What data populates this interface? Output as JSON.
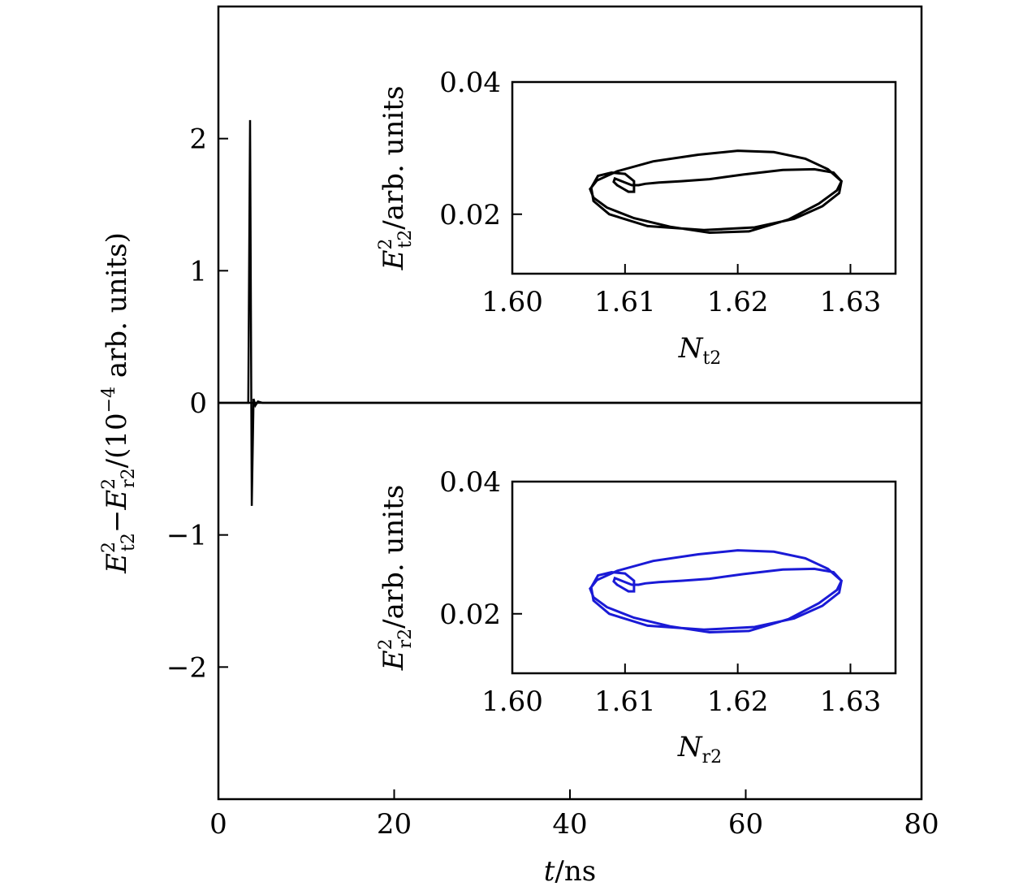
{
  "chart_data": [
    {
      "type": "line",
      "xlabel": {
        "var": "t",
        "unit": "/ns"
      },
      "ylabel": {
        "sym1": "E",
        "sub1": "t2",
        "sup1": "2",
        "minus": "−",
        "sym2": "E",
        "sub2": "r2",
        "sup2": "2",
        "tail1": "/(10",
        "exp": "−4",
        "tail2": " arb. units)"
      },
      "xlim": [
        0,
        80
      ],
      "ylim": [
        -3,
        3
      ],
      "xticks": [
        0,
        20,
        40,
        60,
        80
      ],
      "xtick_labels": [
        "0",
        "20",
        "40",
        "60",
        "80"
      ],
      "yticks": [
        -2,
        -1,
        0,
        1,
        2
      ],
      "ytick_labels": [
        "−2",
        "−1",
        "0",
        "1",
        "2"
      ],
      "grid": false,
      "series": [
        {
          "color": "#000000",
          "x": [
            0,
            3.4,
            3.6,
            3.8,
            4.0,
            4.2,
            4.5,
            5.0,
            6.0,
            10,
            20,
            40,
            60,
            80
          ],
          "y": [
            0,
            0,
            2.14,
            -0.78,
            0.03,
            -0.02,
            0.01,
            0.0,
            0.0,
            0,
            0,
            0,
            0,
            0
          ]
        }
      ]
    },
    {
      "type": "line",
      "position": "upper inset",
      "xlabel": {
        "sym": "N",
        "sub": "t2"
      },
      "ylabel": {
        "sym": "E",
        "sub": "t2",
        "sup": "2",
        "tail": "/arb. units"
      },
      "xlim": [
        1.6,
        1.634
      ],
      "ylim": [
        0.011,
        0.04
      ],
      "xticks": [
        1.6,
        1.61,
        1.62,
        1.63
      ],
      "xtick_labels": [
        "1.60",
        "1.61",
        "1.62",
        "1.63"
      ],
      "yticks": [
        0.02,
        0.04
      ],
      "ytick_labels": [
        "0.02",
        "0.04"
      ],
      "grid": false,
      "series": [
        {
          "color": "#000000",
          "x": [
            1.6108,
            1.6103,
            1.6098,
            1.6093,
            1.609,
            1.6091,
            1.6097,
            1.6106,
            1.6112,
            1.6118,
            1.613,
            1.615,
            1.6175,
            1.6205,
            1.624,
            1.6268,
            1.6285,
            1.6292,
            1.6288,
            1.6272,
            1.6245,
            1.621,
            1.6175,
            1.614,
            1.6108,
            1.6084,
            1.6072,
            1.6069,
            1.6075,
            1.6093,
            1.6125,
            1.6165,
            1.62,
            1.6232,
            1.626,
            1.628,
            1.6292,
            1.629,
            1.6275,
            1.625,
            1.6215,
            1.617,
            1.612,
            1.6086,
            1.6072,
            1.607,
            1.6076,
            1.6088,
            1.61,
            1.6108
          ],
          "y": [
            0.0234,
            0.0234,
            0.0239,
            0.0244,
            0.0249,
            0.0254,
            0.025,
            0.0244,
            0.0244,
            0.0246,
            0.0248,
            0.025,
            0.0253,
            0.026,
            0.0267,
            0.0268,
            0.0263,
            0.025,
            0.0236,
            0.0216,
            0.0192,
            0.0174,
            0.0172,
            0.0181,
            0.0194,
            0.021,
            0.0225,
            0.0238,
            0.0251,
            0.0265,
            0.028,
            0.029,
            0.0296,
            0.0294,
            0.0284,
            0.0268,
            0.025,
            0.0232,
            0.0212,
            0.0193,
            0.018,
            0.0176,
            0.0182,
            0.02,
            0.022,
            0.024,
            0.0258,
            0.0263,
            0.0261,
            0.025
          ]
        }
      ]
    },
    {
      "type": "line",
      "position": "lower inset",
      "xlabel": {
        "sym": "N",
        "sub": "r2"
      },
      "ylabel": {
        "sym": "E",
        "sub": "r2",
        "sup": "2",
        "tail": "/arb. units"
      },
      "xlim": [
        1.6,
        1.634
      ],
      "ylim": [
        0.011,
        0.04
      ],
      "xticks": [
        1.6,
        1.61,
        1.62,
        1.63
      ],
      "xtick_labels": [
        "1.60",
        "1.61",
        "1.62",
        "1.63"
      ],
      "yticks": [
        0.02,
        0.04
      ],
      "ytick_labels": [
        "0.02",
        "0.04"
      ],
      "grid": false,
      "series": [
        {
          "color": "#1a1ad6",
          "x": [
            1.6108,
            1.6103,
            1.6098,
            1.6093,
            1.609,
            1.6091,
            1.6097,
            1.6106,
            1.6112,
            1.6118,
            1.613,
            1.615,
            1.6175,
            1.6205,
            1.624,
            1.6268,
            1.6285,
            1.6292,
            1.6288,
            1.6272,
            1.6245,
            1.621,
            1.6175,
            1.614,
            1.6108,
            1.6084,
            1.6072,
            1.6069,
            1.6075,
            1.6093,
            1.6125,
            1.6165,
            1.62,
            1.6232,
            1.626,
            1.628,
            1.6292,
            1.629,
            1.6275,
            1.625,
            1.6215,
            1.617,
            1.612,
            1.6086,
            1.6072,
            1.607,
            1.6076,
            1.6088,
            1.61,
            1.6108
          ],
          "y": [
            0.0234,
            0.0234,
            0.0239,
            0.0244,
            0.0249,
            0.0254,
            0.025,
            0.0244,
            0.0244,
            0.0246,
            0.0248,
            0.025,
            0.0253,
            0.026,
            0.0267,
            0.0268,
            0.0263,
            0.025,
            0.0236,
            0.0216,
            0.0192,
            0.0174,
            0.0172,
            0.0181,
            0.0194,
            0.021,
            0.0225,
            0.0238,
            0.0251,
            0.0265,
            0.028,
            0.029,
            0.0296,
            0.0294,
            0.0284,
            0.0268,
            0.025,
            0.0232,
            0.0212,
            0.0193,
            0.018,
            0.0176,
            0.0182,
            0.02,
            0.022,
            0.024,
            0.0258,
            0.0263,
            0.0261,
            0.025
          ]
        }
      ]
    }
  ]
}
